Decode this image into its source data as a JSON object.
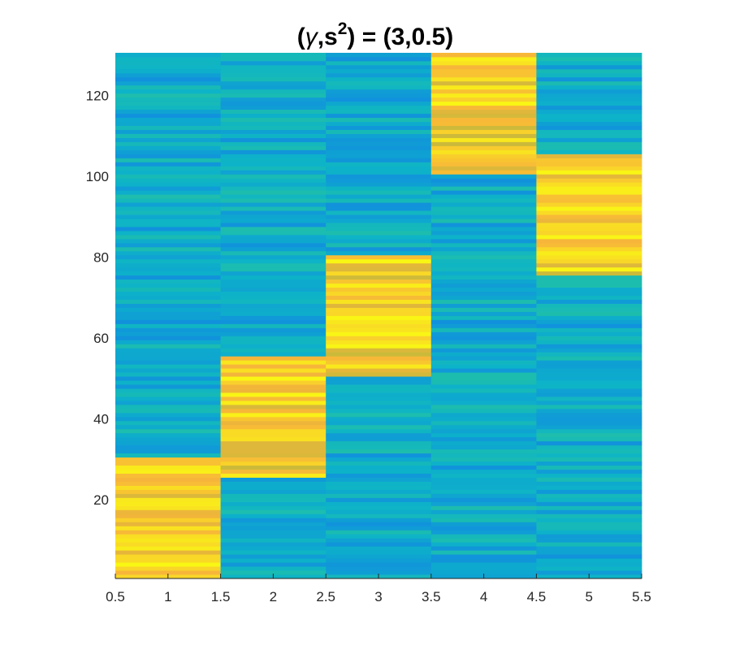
{
  "chart_data": {
    "type": "heatmap",
    "title": "(γ,s²) = (3,0.5)",
    "title_parts": {
      "open": "(",
      "gamma": "γ",
      "mid": ",s",
      "sup": "2",
      "close": ") = (3,0.5)"
    },
    "xlabel": "",
    "ylabel": "",
    "xlim": [
      0.5,
      5.5
    ],
    "ylim": [
      0.5,
      130.5
    ],
    "x_ticks": [
      "0.5",
      "1",
      "1.5",
      "2",
      "2.5",
      "3",
      "3.5",
      "4",
      "4.5",
      "5",
      "5.5"
    ],
    "y_ticks": [
      "20",
      "40",
      "60",
      "80",
      "100",
      "120"
    ],
    "columns": [
      1,
      2,
      3,
      4,
      5
    ],
    "rows": 130,
    "high_blocks": [
      {
        "column": 1,
        "row_start": 1,
        "row_end": 30
      },
      {
        "column": 2,
        "row_start": 26,
        "row_end": 55
      },
      {
        "column": 3,
        "row_start": 51,
        "row_end": 80
      },
      {
        "column": 4,
        "row_start": 101,
        "row_end": 130
      },
      {
        "column": 5,
        "row_start": 76,
        "row_end": 105
      }
    ],
    "value_ranges": {
      "high": [
        0.75,
        1.0
      ],
      "low": [
        0.3,
        0.5
      ]
    },
    "colormap": "parula",
    "colors": {
      "low": "#0db3c8",
      "mid": "#22c0a6",
      "high": "#f9d12b",
      "peak": "#f9f714",
      "orange": "#f7b43a"
    },
    "grid": false
  }
}
